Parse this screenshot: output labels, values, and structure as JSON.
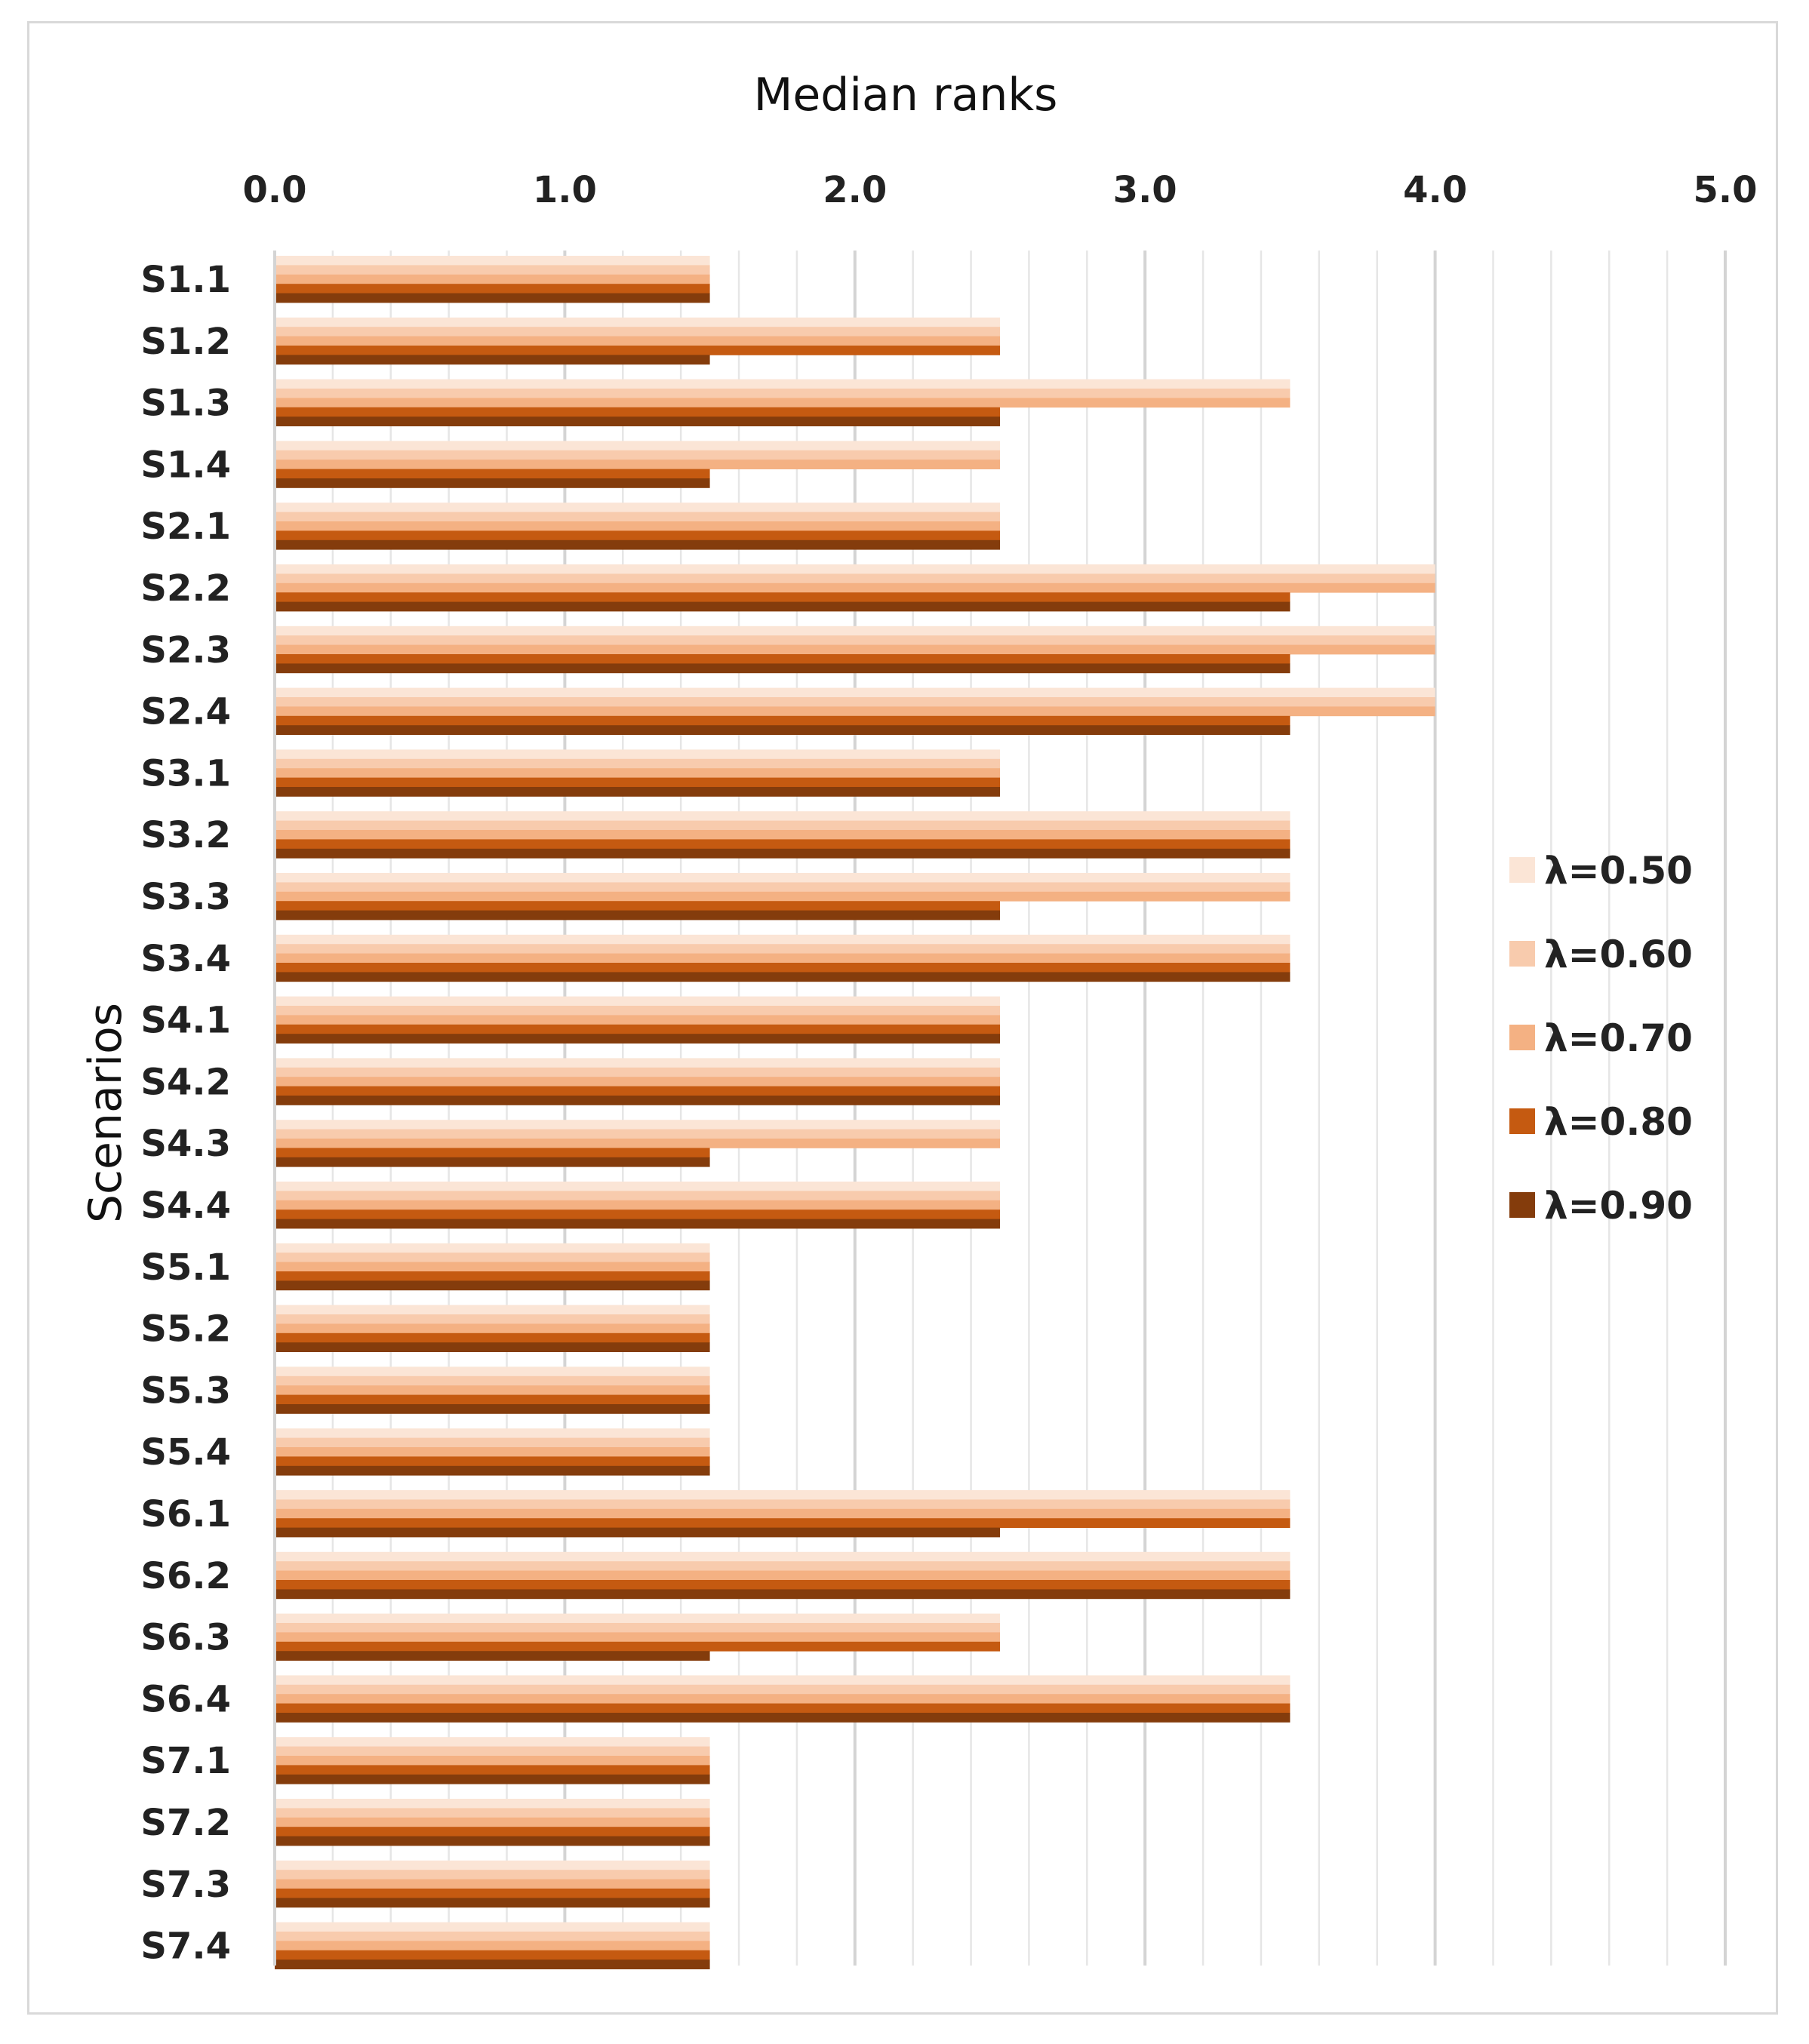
{
  "chart_data": {
    "type": "bar",
    "orientation": "horizontal",
    "title": "Median ranks",
    "xlabel": "Median ranks",
    "ylabel": "Scenarios",
    "xlim": [
      0,
      5
    ],
    "xticks": [
      "0.0",
      "1.0",
      "2.0",
      "3.0",
      "4.0",
      "5.0"
    ],
    "grid": true,
    "legend_position": "right",
    "categories": [
      "S1.1",
      "S1.2",
      "S1.3",
      "S1.4",
      "S2.1",
      "S2.2",
      "S2.3",
      "S2.4",
      "S3.1",
      "S3.2",
      "S3.3",
      "S3.4",
      "S4.1",
      "S4.2",
      "S4.3",
      "S4.4",
      "S5.1",
      "S5.2",
      "S5.3",
      "S5.4",
      "S6.1",
      "S6.2",
      "S6.3",
      "S6.4",
      "S7.1",
      "S7.2",
      "S7.3",
      "S7.4"
    ],
    "series": [
      {
        "name": "λ=0.50",
        "color": "#fbe5d6",
        "values": [
          1.5,
          2.5,
          3.5,
          2.5,
          2.5,
          4,
          4,
          4,
          2.5,
          3.5,
          3.5,
          3.5,
          2.5,
          2.5,
          2.5,
          2.5,
          1.5,
          1.5,
          1.5,
          1.5,
          3.5,
          3.5,
          2.5,
          3.5,
          1.5,
          1.5,
          1.5,
          1.5
        ]
      },
      {
        "name": "λ=0.60",
        "color": "#f8cbad",
        "values": [
          1.5,
          2.5,
          3.5,
          2.5,
          2.5,
          4,
          4,
          4,
          2.5,
          3.5,
          3.5,
          3.5,
          2.5,
          2.5,
          2.5,
          2.5,
          1.5,
          1.5,
          1.5,
          1.5,
          3.5,
          3.5,
          2.5,
          3.5,
          1.5,
          1.5,
          1.5,
          1.5
        ]
      },
      {
        "name": "λ=0.70",
        "color": "#f4b183",
        "values": [
          1.5,
          2.5,
          3.5,
          2.5,
          2.5,
          4,
          4,
          4,
          2.5,
          3.5,
          3.5,
          3.5,
          2.5,
          2.5,
          2.5,
          2.5,
          1.5,
          1.5,
          1.5,
          1.5,
          3.5,
          3.5,
          2.5,
          3.5,
          1.5,
          1.5,
          1.5,
          1.5
        ]
      },
      {
        "name": "λ=0.80",
        "color": "#c55a11",
        "values": [
          1.5,
          2.5,
          2.5,
          1.5,
          2.5,
          3.5,
          3.5,
          3.5,
          2.5,
          3.5,
          2.5,
          3.5,
          2.5,
          2.5,
          1.5,
          2.5,
          1.5,
          1.5,
          1.5,
          1.5,
          3.5,
          3.5,
          2.5,
          3.5,
          1.5,
          1.5,
          1.5,
          1.5
        ]
      },
      {
        "name": "λ=0.90",
        "color": "#843c0c",
        "values": [
          1.5,
          1.5,
          2.5,
          1.5,
          2.5,
          3.5,
          3.5,
          3.5,
          2.5,
          3.5,
          2.5,
          3.5,
          2.5,
          2.5,
          1.5,
          2.5,
          1.5,
          1.5,
          1.5,
          1.5,
          2.5,
          3.5,
          1.5,
          3.5,
          1.5,
          1.5,
          1.5,
          1.5
        ]
      }
    ]
  }
}
